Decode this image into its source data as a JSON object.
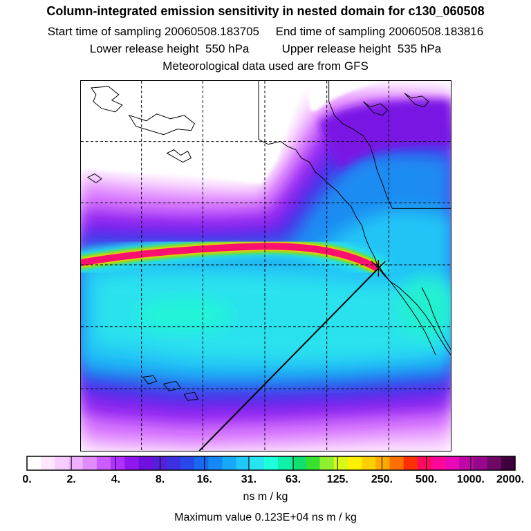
{
  "header": {
    "title": "Column-integrated emission sensitivity in nested domain for c130_060508",
    "line2": "Start time of sampling 20060508.183705     End time of sampling 20060508.183816",
    "line3": "Lower release height  550 hPa          Upper release height  535 hPa",
    "line4": "Meteorological data used are from GFS"
  },
  "colorbar": {
    "labels": [
      "0.",
      "2.",
      "4.",
      "8.",
      "16.",
      "31.",
      "63.",
      "125.",
      "250.",
      "500.",
      "1000.",
      "2000."
    ],
    "colors": [
      "#ffffff",
      "#ffe6ff",
      "#f9ccff",
      "#eeb0ff",
      "#e08cff",
      "#cc5cff",
      "#b030ff",
      "#9018ee",
      "#7010e0",
      "#5520d8",
      "#3c30e0",
      "#2848e8",
      "#1868f0",
      "#1488f4",
      "#18a8f8",
      "#20c8f8",
      "#28e4f0",
      "#20ffdc",
      "#10f0a8",
      "#10e070",
      "#38e030",
      "#90f030",
      "#d8f818",
      "#fff000",
      "#ffd000",
      "#ffa800",
      "#ff7000",
      "#ff3000",
      "#ff0860",
      "#ff0898",
      "#e808b8",
      "#c008a8",
      "#98088c",
      "#700868",
      "#400040"
    ],
    "unit": "ns m / kg",
    "max_value": "Maximum value  0.123E+04 ns m / kg"
  },
  "map": {
    "release_marker": "x-marker"
  }
}
